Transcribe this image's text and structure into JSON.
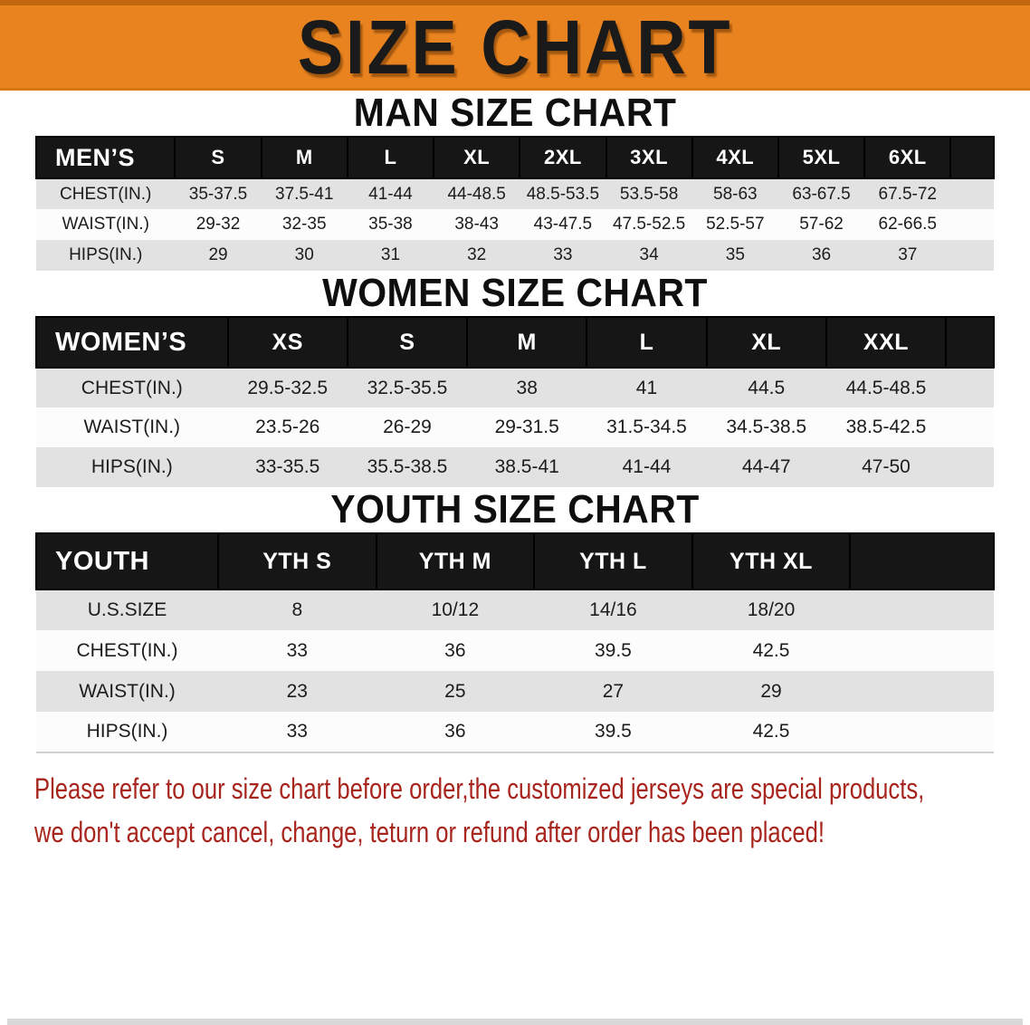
{
  "banner": {
    "title": "SIZE CHART"
  },
  "colors": {
    "banner_orange": "#E8831F",
    "header_black": "#161616",
    "row_gray": "#E2E2E2",
    "footer_red": "#A8251E"
  },
  "men": {
    "heading": "MAN SIZE CHART",
    "label": "MEN’S",
    "sizes": [
      "S",
      "M",
      "L",
      "XL",
      "2XL",
      "3XL",
      "4XL",
      "5XL",
      "6XL"
    ],
    "rows": [
      {
        "label": "CHEST(IN.)",
        "values": [
          "35-37.5",
          "37.5-41",
          "41-44",
          "44-48.5",
          "48.5-53.5",
          "53.5-58",
          "58-63",
          "63-67.5",
          "67.5-72"
        ]
      },
      {
        "label": "WAIST(IN.)",
        "values": [
          "29-32",
          "32-35",
          "35-38",
          "38-43",
          "43-47.5",
          "47.5-52.5",
          "52.5-57",
          "57-62",
          "62-66.5"
        ]
      },
      {
        "label": "HIPS(IN.)",
        "values": [
          "29",
          "30",
          "31",
          "32",
          "33",
          "34",
          "35",
          "36",
          "37"
        ]
      }
    ]
  },
  "women": {
    "heading": "WOMEN SIZE CHART",
    "label": "WOMEN’S",
    "sizes": [
      "XS",
      "S",
      "M",
      "L",
      "XL",
      "XXL"
    ],
    "rows": [
      {
        "label": "CHEST(IN.)",
        "values": [
          "29.5-32.5",
          "32.5-35.5",
          "38",
          "41",
          "44.5",
          "44.5-48.5"
        ]
      },
      {
        "label": "WAIST(IN.)",
        "values": [
          "23.5-26",
          "26-29",
          "29-31.5",
          "31.5-34.5",
          "34.5-38.5",
          "38.5-42.5"
        ]
      },
      {
        "label": "HIPS(IN.)",
        "values": [
          "33-35.5",
          "35.5-38.5",
          "38.5-41",
          "41-44",
          "44-47",
          "47-50"
        ]
      }
    ]
  },
  "youth": {
    "heading": "YOUTH SIZE CHART",
    "label": "YOUTH",
    "sizes": [
      "YTH S",
      "YTH M",
      "YTH L",
      "YTH XL"
    ],
    "rows": [
      {
        "label": "U.S.SIZE",
        "values": [
          "8",
          "10/12",
          "14/16",
          "18/20"
        ]
      },
      {
        "label": "CHEST(IN.)",
        "values": [
          "33",
          "36",
          "39.5",
          "42.5"
        ]
      },
      {
        "label": "WAIST(IN.)",
        "values": [
          "23",
          "25",
          "27",
          "29"
        ]
      },
      {
        "label": "HIPS(IN.)",
        "values": [
          "33",
          "36",
          "39.5",
          "42.5"
        ]
      }
    ]
  },
  "footer": {
    "line1": "Please refer to our size chart before order,the customized jerseys are special products,",
    "line2": "we don't accept cancel, change, teturn or refund after order has been placed!"
  }
}
